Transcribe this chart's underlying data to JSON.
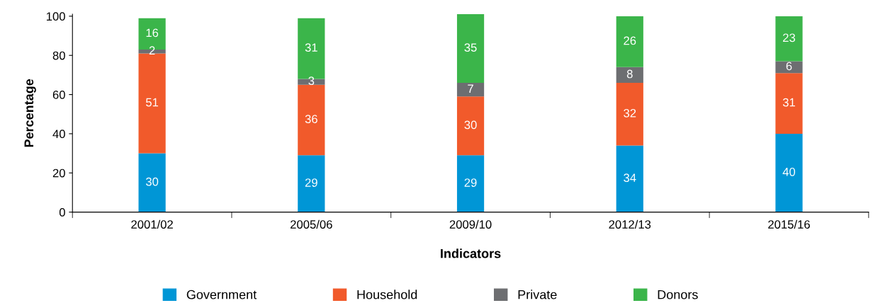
{
  "chart_data": {
    "type": "bar",
    "stacked": true,
    "xlabel": "Indicators",
    "ylabel": "Percentage",
    "categories": [
      "2001/02",
      "2005/06",
      "2009/10",
      "2012/13",
      "2015/16"
    ],
    "series": [
      {
        "name": "Government",
        "color": "#0096d6",
        "values": [
          30,
          29,
          29,
          34,
          40
        ]
      },
      {
        "name": "Household",
        "color": "#f15a2b",
        "values": [
          51,
          36,
          30,
          32,
          31
        ]
      },
      {
        "name": "Private",
        "color": "#6d6e71",
        "values": [
          2,
          3,
          7,
          8,
          6
        ]
      },
      {
        "name": "Donors",
        "color": "#3bb54a",
        "values": [
          16,
          31,
          35,
          26,
          23
        ]
      }
    ],
    "ylim": [
      0,
      101
    ],
    "yticks": [
      0,
      20,
      40,
      60,
      80,
      100
    ],
    "grid": false,
    "legend": "bottom",
    "data_labels": true
  }
}
